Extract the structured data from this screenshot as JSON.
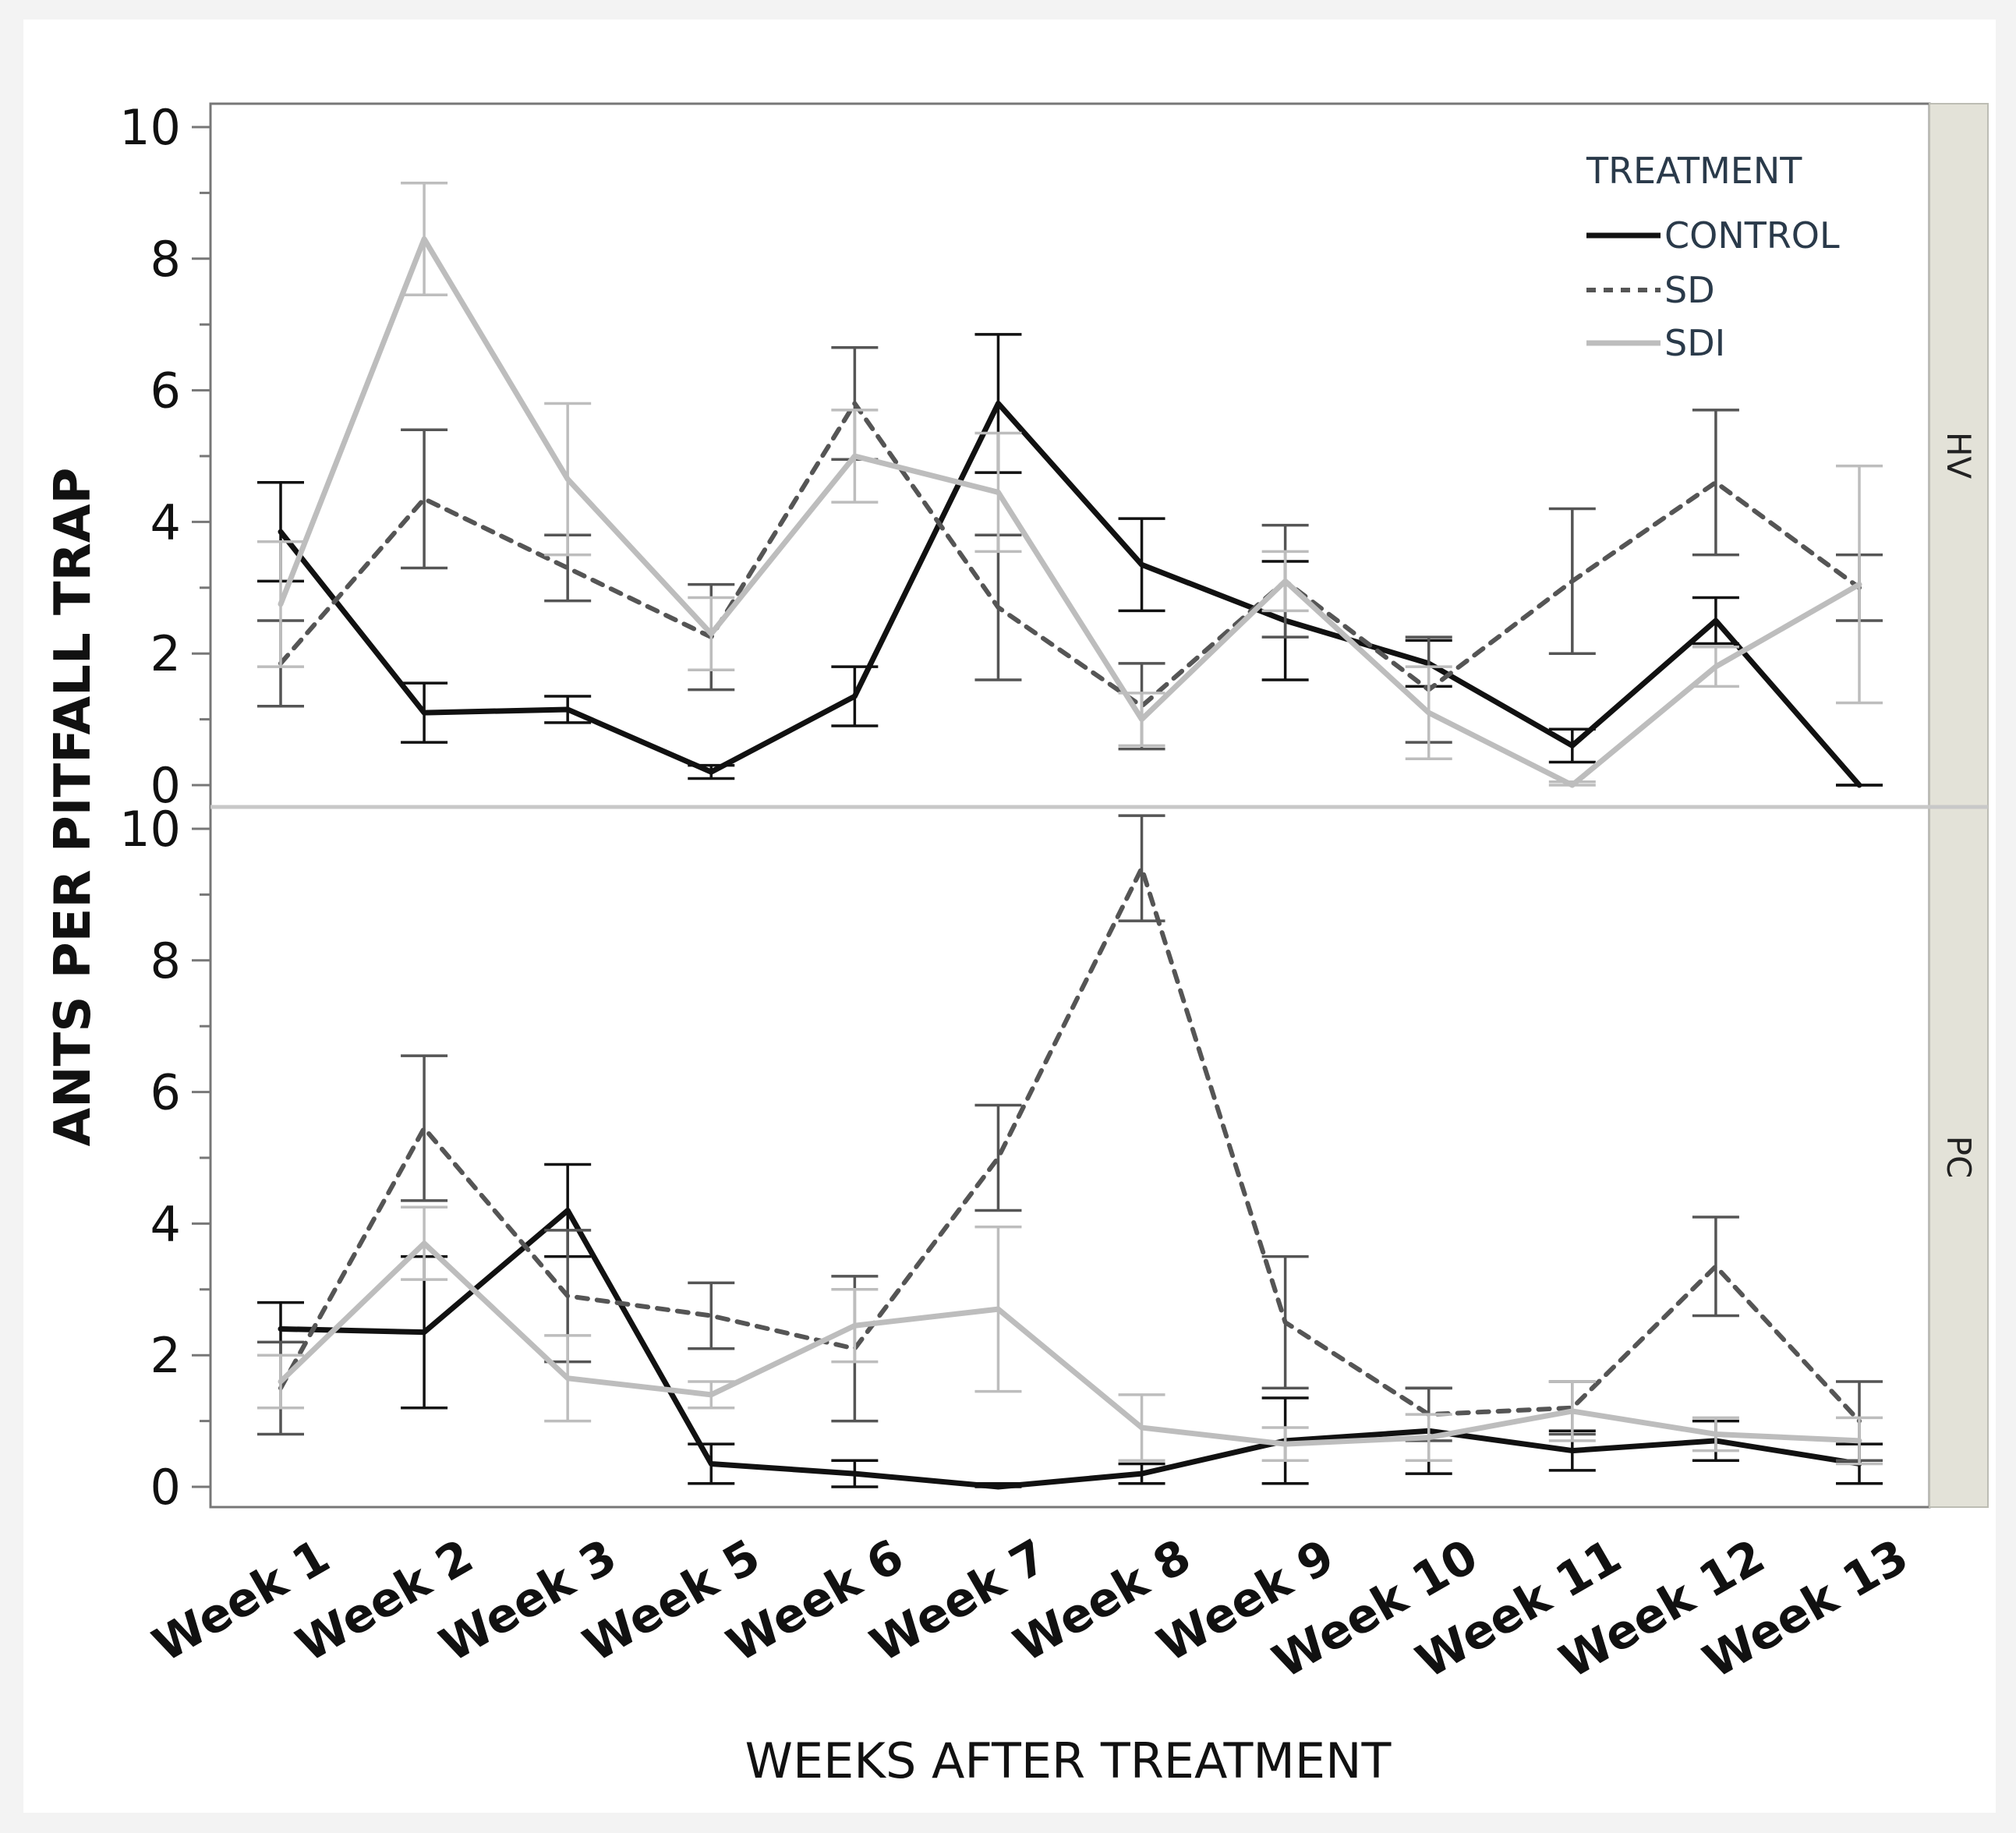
{
  "chart_data": {
    "type": "line",
    "ylabel": "ANTS PER PITFALL TRAP",
    "xlabel": "WEEKS AFTER TREATMENT",
    "categories": [
      "Week 1",
      "Week 2",
      "Week 3",
      "Week 5",
      "Week 6",
      "Week 7",
      "Week 8",
      "Week 9",
      "Week 10",
      "Week 11",
      "Week 12",
      "Week 13"
    ],
    "ylim": [
      0,
      10
    ],
    "yticks": [
      "0",
      "2",
      "4",
      "6",
      "8",
      "10"
    ],
    "legend": {
      "title": "TREATMENT",
      "position": "top-right",
      "entries": [
        "CONTROL",
        "SD",
        "SDI"
      ]
    },
    "colors": {
      "CONTROL": "#111111",
      "SD": "#555555",
      "SDI": "#bdbdbd"
    },
    "panels": [
      {
        "label": "HV",
        "series": [
          {
            "name": "CONTROL",
            "values": [
              3.85,
              1.1,
              1.15,
              0.2,
              1.35,
              5.8,
              3.35,
              2.5,
              1.85,
              0.6,
              2.5,
              0
            ],
            "errors": [
              0.75,
              0.45,
              0.2,
              0.1,
              0.45,
              1.05,
              0.7,
              0.9,
              0.35,
              0.25,
              0.35,
              0
            ]
          },
          {
            "name": "SD",
            "values": [
              1.85,
              4.35,
              3.3,
              2.25,
              5.8,
              2.7,
              1.2,
              3.1,
              1.45,
              3.1,
              4.6,
              3.0
            ],
            "errors": [
              0.65,
              1.05,
              0.5,
              0.8,
              0.85,
              1.1,
              0.65,
              0.85,
              0.8,
              1.1,
              1.1,
              0.5
            ]
          },
          {
            "name": "SDI",
            "values": [
              2.75,
              8.3,
              4.65,
              2.3,
              5.0,
              4.45,
              1.0,
              3.1,
              1.1,
              0.0,
              1.8,
              3.05
            ],
            "errors": [
              0.95,
              0.85,
              1.15,
              0.55,
              0.7,
              0.9,
              0.4,
              0.45,
              0.7,
              0.05,
              0.3,
              1.8
            ]
          }
        ]
      },
      {
        "label": "PC",
        "series": [
          {
            "name": "CONTROL",
            "values": [
              2.4,
              2.35,
              4.2,
              0.35,
              0.2,
              0.0,
              0.2,
              0.7,
              0.85,
              0.55,
              0.7,
              0.35
            ],
            "errors": [
              0.4,
              1.15,
              0.7,
              0.3,
              0.2,
              0.05,
              0.15,
              0.65,
              0.65,
              0.3,
              0.3,
              0.3
            ]
          },
          {
            "name": "SD",
            "values": [
              1.5,
              5.45,
              2.9,
              2.6,
              2.1,
              5.0,
              9.4,
              2.5,
              1.1,
              1.2,
              3.35,
              1.0
            ],
            "errors": [
              0.7,
              1.1,
              1.0,
              0.5,
              1.1,
              0.8,
              0.8,
              1.0,
              0.4,
              0.4,
              0.75,
              0.6
            ]
          },
          {
            "name": "SDI",
            "values": [
              1.6,
              3.7,
              1.65,
              1.4,
              2.45,
              2.7,
              0.9,
              0.65,
              0.75,
              1.15,
              0.8,
              0.7
            ],
            "errors": [
              0.4,
              0.55,
              0.65,
              0.2,
              0.55,
              1.25,
              0.5,
              0.25,
              0.35,
              0.45,
              0.25,
              0.35
            ]
          }
        ]
      }
    ]
  }
}
